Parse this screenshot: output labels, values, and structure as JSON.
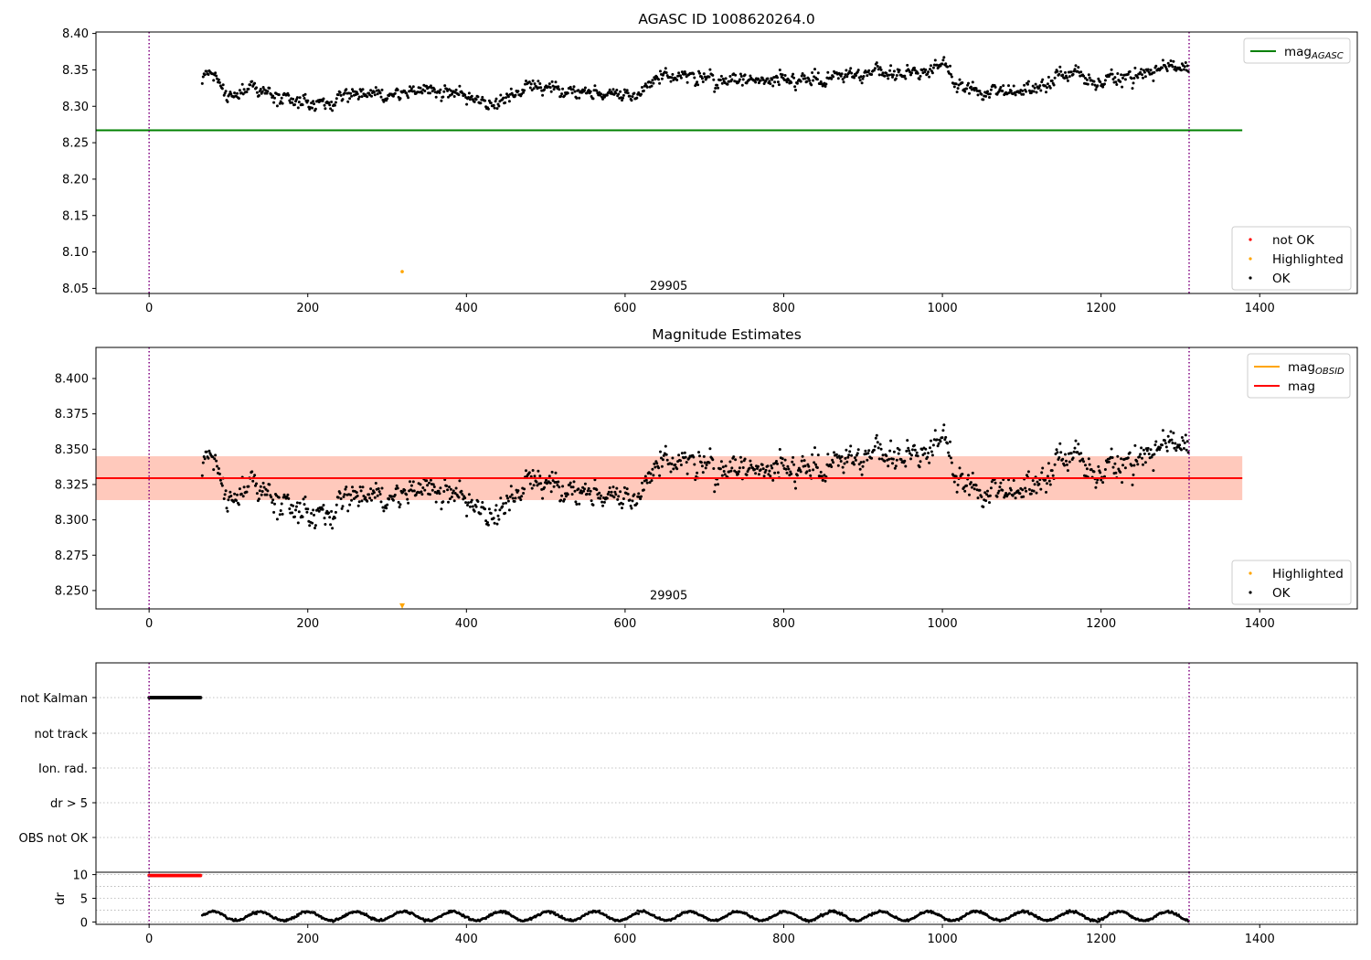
{
  "chart_data": [
    {
      "type": "scatter",
      "title": "AGASC ID 1008620264.0",
      "xlim": [
        -67,
        1523
      ],
      "ylim": [
        8.043,
        8.402
      ],
      "xticks": [
        "0",
        "200",
        "400",
        "600",
        "800",
        "1000",
        "1200",
        "1400"
      ],
      "yticks": [
        "8.05",
        "8.10",
        "8.15",
        "8.20",
        "8.25",
        "8.30",
        "8.35",
        "8.40"
      ],
      "vlines": [
        0,
        1311
      ],
      "vline_color": "#800080",
      "hline": {
        "name": "mag_AGASC",
        "label_main": "mag",
        "label_sub": "AGASC",
        "y": 8.267,
        "x_range": [
          -67,
          1378
        ],
        "color": "#008000"
      },
      "obsid_label": {
        "text": "29905",
        "x": 655,
        "y": 8.053
      },
      "series": [
        {
          "name": "not OK",
          "color": "#ff0000",
          "points": []
        },
        {
          "name": "Highlighted",
          "color": "#ffa500",
          "points": [
            [
              319,
              8.073
            ]
          ]
        },
        {
          "name": "OK",
          "color": "#000000",
          "x_range": [
            67,
            1311
          ],
          "trend": [
            [
              67,
              8.335
            ],
            [
              80,
              8.345
            ],
            [
              95,
              8.318
            ],
            [
              140,
              8.32
            ],
            [
              170,
              8.308
            ],
            [
              220,
              8.302
            ],
            [
              260,
              8.318
            ],
            [
              330,
              8.322
            ],
            [
              360,
              8.324
            ],
            [
              400,
              8.312
            ],
            [
              430,
              8.303
            ],
            [
              470,
              8.326
            ],
            [
              520,
              8.324
            ],
            [
              580,
              8.316
            ],
            [
              620,
              8.32
            ],
            [
              650,
              8.344
            ],
            [
              680,
              8.338
            ],
            [
              730,
              8.333
            ],
            [
              770,
              8.338
            ],
            [
              820,
              8.333
            ],
            [
              860,
              8.34
            ],
            [
              900,
              8.345
            ],
            [
              960,
              8.342
            ],
            [
              1005,
              8.36
            ],
            [
              1015,
              8.33
            ],
            [
              1040,
              8.316
            ],
            [
              1060,
              8.322
            ],
            [
              1100,
              8.322
            ],
            [
              1130,
              8.336
            ],
            [
              1160,
              8.343
            ],
            [
              1200,
              8.338
            ],
            [
              1260,
              8.343
            ],
            [
              1280,
              8.357
            ],
            [
              1311,
              8.35
            ]
          ]
        }
      ],
      "legend_upper": [
        "mag_AGASC"
      ],
      "legend_lower": [
        "not OK",
        "Highlighted",
        "OK"
      ]
    },
    {
      "type": "scatter",
      "title": "Magnitude Estimates",
      "xlim": [
        -67,
        1523
      ],
      "ylim": [
        8.237,
        8.422
      ],
      "xticks": [
        "0",
        "200",
        "400",
        "600",
        "800",
        "1000",
        "1200",
        "1400"
      ],
      "yticks": [
        "8.250",
        "8.275",
        "8.300",
        "8.325",
        "8.350",
        "8.375",
        "8.400"
      ],
      "vlines": [
        0,
        1311
      ],
      "vline_color": "#800080",
      "obsid_label": {
        "text": "29905",
        "x": 655,
        "y": 8.2465
      },
      "bands": [
        {
          "name": "mag band",
          "x_range": [
            -67,
            1378
          ],
          "y_range": [
            8.314,
            8.345
          ],
          "color": "#ffb6c1",
          "opacity": 0.4
        },
        {
          "name": "mag_OBSID band",
          "x_range": [
            -67,
            1378
          ],
          "y_range": [
            8.314,
            8.345
          ],
          "color": "#ffa07a",
          "opacity": 0.38
        }
      ],
      "lines": [
        {
          "name": "mag_OBSID",
          "label_main": "mag",
          "label_sub": "OBSID",
          "y": 8.3295,
          "x_range": [
            -67,
            1378
          ],
          "color": "#ffa500"
        },
        {
          "name": "mag",
          "label_main": "mag",
          "label_sub": "",
          "y": 8.3295,
          "x_range": [
            -67,
            1378
          ],
          "color": "#ff0000"
        }
      ],
      "series": [
        {
          "name": "Highlighted",
          "color": "#ffa500",
          "points": [
            [
              319,
              8.239
            ]
          ]
        },
        {
          "name": "OK",
          "color": "#000000",
          "x_range": [
            67,
            1311
          ],
          "trend": [
            [
              67,
              8.335
            ],
            [
              80,
              8.345
            ],
            [
              95,
              8.318
            ],
            [
              140,
              8.32
            ],
            [
              170,
              8.308
            ],
            [
              220,
              8.302
            ],
            [
              260,
              8.318
            ],
            [
              330,
              8.322
            ],
            [
              360,
              8.324
            ],
            [
              400,
              8.312
            ],
            [
              430,
              8.303
            ],
            [
              470,
              8.326
            ],
            [
              520,
              8.324
            ],
            [
              580,
              8.316
            ],
            [
              620,
              8.32
            ],
            [
              650,
              8.344
            ],
            [
              680,
              8.338
            ],
            [
              730,
              8.333
            ],
            [
              770,
              8.338
            ],
            [
              820,
              8.333
            ],
            [
              860,
              8.34
            ],
            [
              900,
              8.345
            ],
            [
              960,
              8.342
            ],
            [
              1005,
              8.36
            ],
            [
              1015,
              8.33
            ],
            [
              1040,
              8.316
            ],
            [
              1060,
              8.322
            ],
            [
              1100,
              8.322
            ],
            [
              1130,
              8.336
            ],
            [
              1160,
              8.343
            ],
            [
              1200,
              8.338
            ],
            [
              1260,
              8.343
            ],
            [
              1280,
              8.357
            ],
            [
              1311,
              8.35
            ]
          ]
        }
      ],
      "legend_upper": [
        "mag_OBSID",
        "mag"
      ],
      "legend_lower": [
        "Highlighted",
        "OK"
      ]
    },
    {
      "type": "scatter",
      "title": "",
      "xlim": [
        -67,
        1523
      ],
      "categories": [
        "not Kalman",
        "not track",
        "Ion. rad.",
        "dr > 5",
        "OBS not OK"
      ],
      "vlines": [
        0,
        1311
      ],
      "vline_color": "#800080",
      "flags": [
        {
          "category": "not Kalman",
          "x_range": [
            0,
            66
          ],
          "color": "#000000"
        }
      ]
    },
    {
      "type": "scatter",
      "ylabel": "dr",
      "xlim": [
        -67,
        1523
      ],
      "ylim": [
        -0.5,
        10.5
      ],
      "xticks": [
        "0",
        "200",
        "400",
        "600",
        "800",
        "1000",
        "1200",
        "1400"
      ],
      "yticks": [
        "0",
        "5",
        "10"
      ],
      "vlines": [
        0,
        1311
      ],
      "vline_color": "#800080",
      "series": [
        {
          "name": "dr capped",
          "color": "#ff0000",
          "x_range": [
            0,
            66
          ],
          "y": 9.8
        },
        {
          "name": "dr",
          "color": "#000000",
          "x_range": [
            67,
            1311
          ],
          "range": [
            0.2,
            2.3
          ]
        }
      ]
    }
  ]
}
